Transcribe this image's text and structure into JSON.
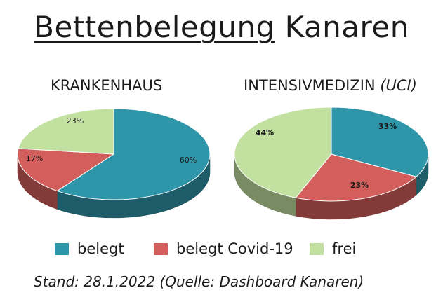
{
  "title_part1": "Bettenbelegung",
  "title_part2": "Kanaren",
  "footer": "Stand: 28.1.2022 (Quelle: Dashboard Kanaren)",
  "colors": {
    "belegt": "#2f95a8",
    "belegt_covid": "#d25f5c",
    "frei": "#c2e0a0"
  },
  "legend": [
    {
      "label": "belegt",
      "color_key": "belegt"
    },
    {
      "label": "belegt Covid-19",
      "color_key": "belegt_covid"
    },
    {
      "label": "frei",
      "color_key": "frei"
    }
  ],
  "chart_data": [
    {
      "type": "pie",
      "title": "KRANKENHAUS",
      "title_suffix": "",
      "categories": [
        "belegt",
        "belegt Covid-19",
        "frei"
      ],
      "values": [
        60,
        17,
        23
      ],
      "labels": [
        "60%",
        "17%",
        "23%"
      ]
    },
    {
      "type": "pie",
      "title": "INTENSIVMEDIZIN",
      "title_suffix": "(UCI)",
      "categories": [
        "belegt",
        "belegt Covid-19",
        "frei"
      ],
      "values": [
        33,
        23,
        44
      ],
      "labels": [
        "33%",
        "23%",
        "44%"
      ]
    }
  ]
}
